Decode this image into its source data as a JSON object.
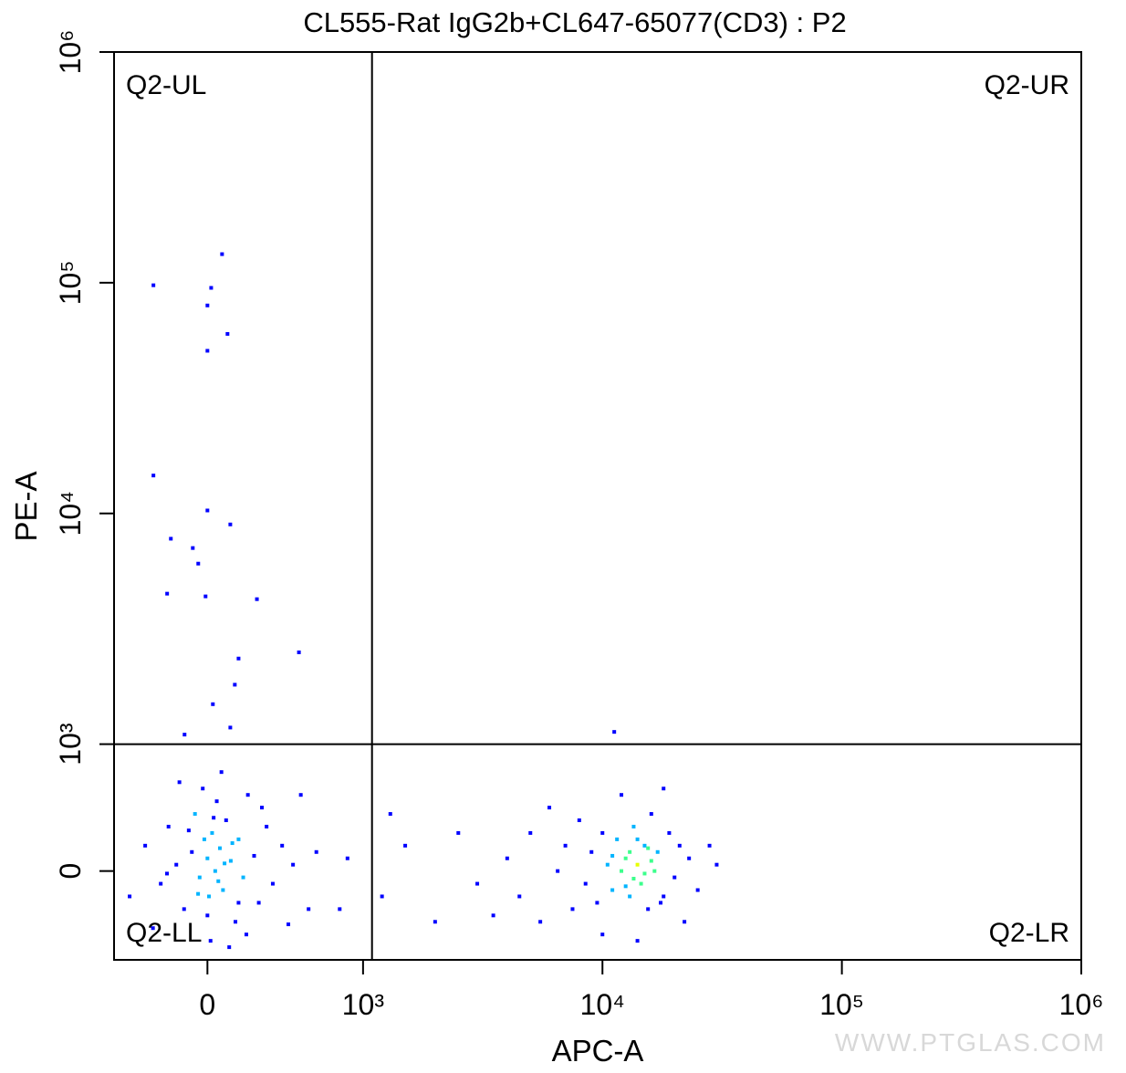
{
  "chart_data": {
    "type": "scatter",
    "title": "CL555-Rat IgG2b+CL647-65077(CD3) : P2",
    "x_label": "APC-A",
    "y_label": "PE-A",
    "scale": "biexponential",
    "xlim": [
      -600,
      1000000
    ],
    "ylim": [
      -700,
      1000000
    ],
    "xticks": [
      0,
      {
        "value": 1000,
        "label": "10³"
      },
      {
        "value": 10000,
        "label": "10⁴"
      },
      {
        "value": 100000,
        "label": "10⁵"
      },
      {
        "value": 1000000,
        "label": "10⁶"
      }
    ],
    "yticks": [
      0,
      {
        "value": 1000,
        "label": "10³"
      },
      {
        "value": 10000,
        "label": "10⁴"
      },
      {
        "value": 100000,
        "label": "10⁵"
      },
      {
        "value": 1000000,
        "label": "10⁶"
      }
    ],
    "gates": {
      "x": 1090,
      "y": 1000
    },
    "quadrants": [
      "Q2-UL",
      "Q2-UR",
      "Q2-LL",
      "Q2-LR"
    ],
    "color_map": [
      "#0000ff",
      "#00b4ff",
      "#3cff8c",
      "#e6ff00"
    ],
    "watermark": "WWW.PTGLAS.COM",
    "series": [
      {
        "name": "P2",
        "color": "#0000ff",
        "x": [
          -347,
          24,
          0,
          94,
          129,
          0,
          -347,
          0,
          147,
          -235,
          -94,
          -59,
          -259,
          -12,
          318,
          588,
          200,
          176,
          35,
          147,
          -147,
          11200,
          -400,
          -300,
          -250,
          -200,
          -150,
          -100,
          -80,
          -50,
          -20,
          0,
          10,
          30,
          50,
          60,
          80,
          100,
          120,
          150,
          180,
          200,
          230,
          260,
          300,
          330,
          380,
          420,
          480,
          550,
          650,
          700,
          -500,
          -350,
          -180,
          20,
          140,
          250,
          90,
          -30,
          40,
          70,
          110,
          -60,
          160,
          -120,
          0,
          350,
          -260,
          200,
          520,
          600,
          4000,
          4500,
          5000,
          5500,
          6000,
          6500,
          7000,
          7500,
          8000,
          8500,
          9000,
          9500,
          10000,
          10500,
          11000,
          11500,
          12000,
          12500,
          13000,
          13500,
          14000,
          14500,
          15000,
          15500,
          16000,
          16500,
          17000,
          18000,
          19000,
          20000,
          21000,
          22000,
          23000,
          25000,
          28000,
          30000,
          12000,
          14000,
          10000,
          18000,
          3500,
          13000,
          15000,
          14000,
          12500,
          16000,
          11000,
          13500,
          15500,
          17500,
          1200,
          1500,
          2000,
          2500,
          3000,
          1300,
          850,
          900
        ],
        "y": [
          97500,
          95000,
          79700,
          133000,
          60000,
          50700,
          14600,
          10300,
          8960,
          7770,
          7080,
          6060,
          4490,
          4370,
          4250,
          2500,
          2350,
          1810,
          1490,
          1180,
          1100,
          1130,
          200,
          -100,
          350,
          50,
          -300,
          150,
          450,
          -50,
          250,
          100,
          -200,
          300,
          0,
          550,
          180,
          -150,
          400,
          80,
          -400,
          250,
          -50,
          600,
          120,
          -250,
          350,
          -100,
          200,
          50,
          -300,
          150,
          -200,
          -450,
          700,
          -550,
          -600,
          -500,
          780,
          650,
          420,
          -80,
          60,
          -180,
          220,
          320,
          -350,
          500,
          -20,
          -250,
          -420,
          600,
          100,
          -200,
          300,
          -400,
          500,
          0,
          200,
          -300,
          400,
          -100,
          150,
          -250,
          300,
          50,
          -150,
          250,
          0,
          100,
          -200,
          350,
          50,
          -100,
          200,
          -300,
          450,
          0,
          150,
          -200,
          300,
          -50,
          200,
          -400,
          100,
          -150,
          200,
          50,
          600,
          -550,
          -500,
          650,
          -350,
          150,
          -20,
          250,
          -120,
          80,
          120,
          -60,
          180,
          -250,
          -200,
          200,
          -400,
          300,
          -100,
          450,
          -300,
          100
        ]
      }
    ]
  }
}
